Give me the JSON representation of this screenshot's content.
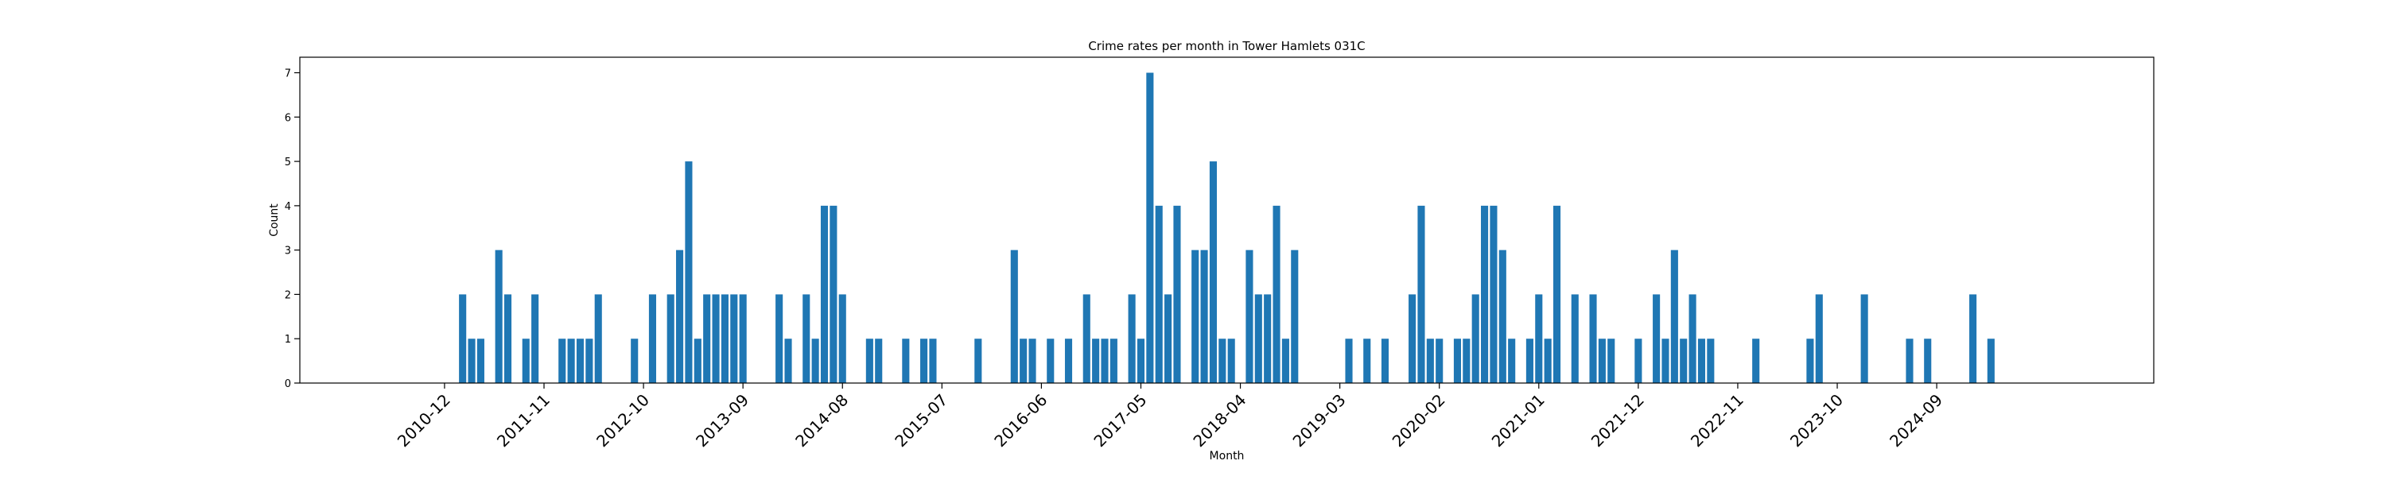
{
  "chart_data": {
    "type": "bar",
    "title": "Crime rates per month in Tower Hamlets 031C",
    "xlabel": "Month",
    "ylabel": "Count",
    "ylim": [
      0,
      7.35
    ],
    "yticks": [
      0,
      1,
      2,
      3,
      4,
      5,
      6,
      7
    ],
    "xlim": [
      "2009-08",
      "2026-09"
    ],
    "xticks": [
      "2010-12",
      "2011-11",
      "2012-10",
      "2013-09",
      "2014-08",
      "2015-07",
      "2016-06",
      "2017-05",
      "2018-04",
      "2019-03",
      "2020-02",
      "2021-01",
      "2021-12",
      "2022-11",
      "2023-10",
      "2024-09"
    ],
    "grid": false,
    "legend": "none",
    "bar_color": "#1f77b4",
    "points": [
      {
        "x": "2011-02",
        "y": 2
      },
      {
        "x": "2011-03",
        "y": 1
      },
      {
        "x": "2011-04",
        "y": 1
      },
      {
        "x": "2011-06",
        "y": 3
      },
      {
        "x": "2011-07",
        "y": 2
      },
      {
        "x": "2011-09",
        "y": 1
      },
      {
        "x": "2011-10",
        "y": 2
      },
      {
        "x": "2012-01",
        "y": 1
      },
      {
        "x": "2012-02",
        "y": 1
      },
      {
        "x": "2012-03",
        "y": 1
      },
      {
        "x": "2012-04",
        "y": 1
      },
      {
        "x": "2012-05",
        "y": 2
      },
      {
        "x": "2012-09",
        "y": 1
      },
      {
        "x": "2012-11",
        "y": 2
      },
      {
        "x": "2013-01",
        "y": 2
      },
      {
        "x": "2013-02",
        "y": 3
      },
      {
        "x": "2013-03",
        "y": 5
      },
      {
        "x": "2013-04",
        "y": 1
      },
      {
        "x": "2013-05",
        "y": 2
      },
      {
        "x": "2013-06",
        "y": 2
      },
      {
        "x": "2013-07",
        "y": 2
      },
      {
        "x": "2013-08",
        "y": 2
      },
      {
        "x": "2013-09",
        "y": 2
      },
      {
        "x": "2014-01",
        "y": 2
      },
      {
        "x": "2014-02",
        "y": 1
      },
      {
        "x": "2014-04",
        "y": 2
      },
      {
        "x": "2014-05",
        "y": 1
      },
      {
        "x": "2014-06",
        "y": 4
      },
      {
        "x": "2014-07",
        "y": 4
      },
      {
        "x": "2014-08",
        "y": 2
      },
      {
        "x": "2014-11",
        "y": 1
      },
      {
        "x": "2014-12",
        "y": 1
      },
      {
        "x": "2015-03",
        "y": 1
      },
      {
        "x": "2015-05",
        "y": 1
      },
      {
        "x": "2015-06",
        "y": 1
      },
      {
        "x": "2015-11",
        "y": 1
      },
      {
        "x": "2016-03",
        "y": 3
      },
      {
        "x": "2016-04",
        "y": 1
      },
      {
        "x": "2016-05",
        "y": 1
      },
      {
        "x": "2016-07",
        "y": 1
      },
      {
        "x": "2016-09",
        "y": 1
      },
      {
        "x": "2016-11",
        "y": 2
      },
      {
        "x": "2016-12",
        "y": 1
      },
      {
        "x": "2017-01",
        "y": 1
      },
      {
        "x": "2017-02",
        "y": 1
      },
      {
        "x": "2017-04",
        "y": 2
      },
      {
        "x": "2017-05",
        "y": 1
      },
      {
        "x": "2017-06",
        "y": 7
      },
      {
        "x": "2017-07",
        "y": 4
      },
      {
        "x": "2017-08",
        "y": 2
      },
      {
        "x": "2017-09",
        "y": 4
      },
      {
        "x": "2017-11",
        "y": 3
      },
      {
        "x": "2017-12",
        "y": 3
      },
      {
        "x": "2018-01",
        "y": 5
      },
      {
        "x": "2018-02",
        "y": 1
      },
      {
        "x": "2018-03",
        "y": 1
      },
      {
        "x": "2018-05",
        "y": 3
      },
      {
        "x": "2018-06",
        "y": 2
      },
      {
        "x": "2018-07",
        "y": 2
      },
      {
        "x": "2018-08",
        "y": 4
      },
      {
        "x": "2018-09",
        "y": 1
      },
      {
        "x": "2018-10",
        "y": 3
      },
      {
        "x": "2019-04",
        "y": 1
      },
      {
        "x": "2019-06",
        "y": 1
      },
      {
        "x": "2019-08",
        "y": 1
      },
      {
        "x": "2019-11",
        "y": 2
      },
      {
        "x": "2019-12",
        "y": 4
      },
      {
        "x": "2020-01",
        "y": 1
      },
      {
        "x": "2020-02",
        "y": 1
      },
      {
        "x": "2020-04",
        "y": 1
      },
      {
        "x": "2020-05",
        "y": 1
      },
      {
        "x": "2020-06",
        "y": 2
      },
      {
        "x": "2020-07",
        "y": 4
      },
      {
        "x": "2020-08",
        "y": 4
      },
      {
        "x": "2020-09",
        "y": 3
      },
      {
        "x": "2020-10",
        "y": 1
      },
      {
        "x": "2020-12",
        "y": 1
      },
      {
        "x": "2021-01",
        "y": 2
      },
      {
        "x": "2021-02",
        "y": 1
      },
      {
        "x": "2021-03",
        "y": 4
      },
      {
        "x": "2021-05",
        "y": 2
      },
      {
        "x": "2021-07",
        "y": 2
      },
      {
        "x": "2021-08",
        "y": 1
      },
      {
        "x": "2021-09",
        "y": 1
      },
      {
        "x": "2021-12",
        "y": 1
      },
      {
        "x": "2022-02",
        "y": 2
      },
      {
        "x": "2022-03",
        "y": 1
      },
      {
        "x": "2022-04",
        "y": 3
      },
      {
        "x": "2022-05",
        "y": 1
      },
      {
        "x": "2022-06",
        "y": 2
      },
      {
        "x": "2022-07",
        "y": 1
      },
      {
        "x": "2022-08",
        "y": 1
      },
      {
        "x": "2023-01",
        "y": 1
      },
      {
        "x": "2023-07",
        "y": 1
      },
      {
        "x": "2023-08",
        "y": 2
      },
      {
        "x": "2024-01",
        "y": 2
      },
      {
        "x": "2024-06",
        "y": 1
      },
      {
        "x": "2024-08",
        "y": 1
      },
      {
        "x": "2025-01",
        "y": 2
      },
      {
        "x": "2025-03",
        "y": 1
      }
    ]
  }
}
